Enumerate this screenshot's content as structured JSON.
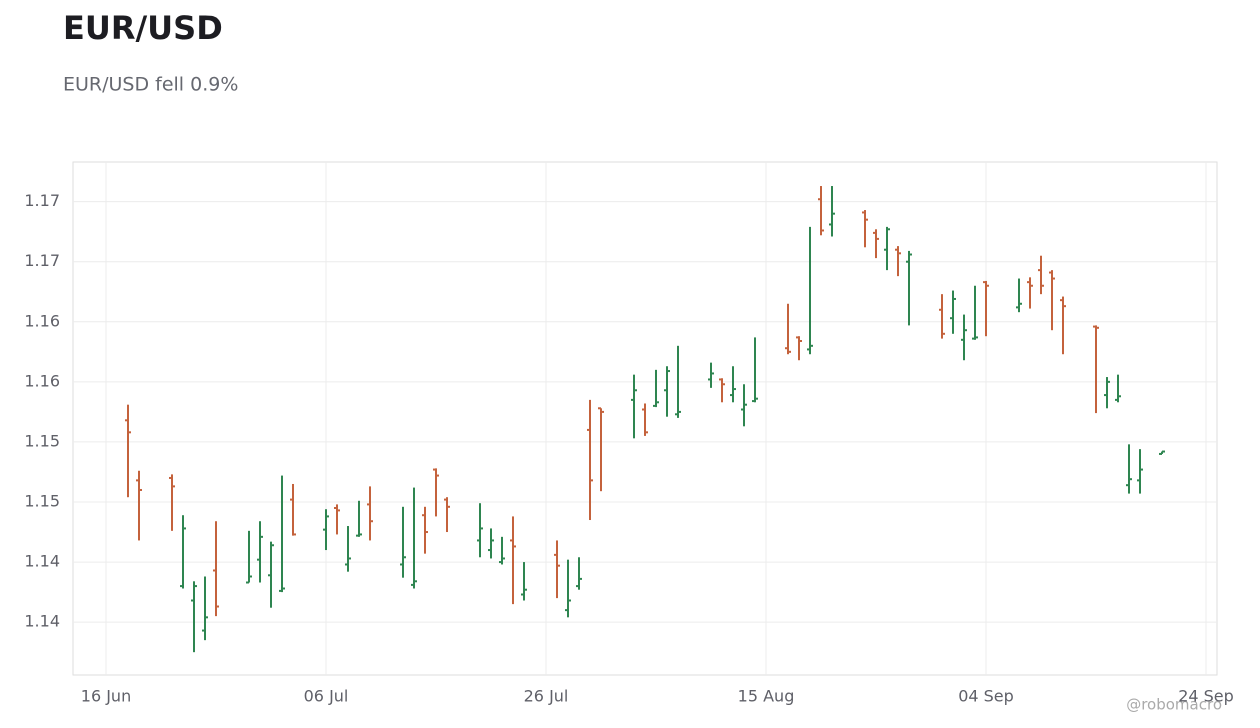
{
  "chart_data": {
    "type": "ohlc",
    "title": "EUR/USD",
    "subtitle": "EUR/USD fell 0.9%",
    "watermark": "@robomacro",
    "up_color": "#2e8550",
    "down_color": "#c4623c",
    "grid": true,
    "x": [
      "18 Jun",
      "19 Jun",
      "22 Jun",
      "23 Jun",
      "24 Jun",
      "25 Jun",
      "26 Jun",
      "29 Jun",
      "30 Jun",
      "01 Jul",
      "02 Jul",
      "03 Jul",
      "06 Jul",
      "07 Jul",
      "08 Jul",
      "09 Jul",
      "10 Jul",
      "13 Jul",
      "14 Jul",
      "15 Jul",
      "16 Jul",
      "17 Jul",
      "20 Jul",
      "21 Jul",
      "22 Jul",
      "23 Jul",
      "24 Jul",
      "27 Jul",
      "28 Jul",
      "29 Jul",
      "30 Jul",
      "31 Jul",
      "03 Aug",
      "04 Aug",
      "05 Aug",
      "06 Aug",
      "07 Aug",
      "10 Aug",
      "11 Aug",
      "12 Aug",
      "13 Aug",
      "14 Aug",
      "17 Aug",
      "18 Aug",
      "19 Aug",
      "20 Aug",
      "21 Aug",
      "24 Aug",
      "25 Aug",
      "26 Aug",
      "27 Aug",
      "28 Aug",
      "31 Aug",
      "01 Sep",
      "02 Sep",
      "03 Sep",
      "04 Sep",
      "07 Sep",
      "08 Sep",
      "09 Sep",
      "10 Sep",
      "11 Sep",
      "14 Sep",
      "15 Sep",
      "16 Sep",
      "17 Sep",
      "18 Sep",
      "20 Sep"
    ],
    "open": [
      1.1543,
      1.1493,
      1.1495,
      1.1405,
      1.1393,
      1.1368,
      1.1418,
      1.1408,
      1.1427,
      1.1414,
      1.1401,
      1.1477,
      1.1452,
      1.147,
      1.1423,
      1.1447,
      1.1473,
      1.1423,
      1.1406,
      1.1464,
      1.1502,
      1.1477,
      1.1443,
      1.1435,
      1.1425,
      1.1443,
      1.1398,
      1.1431,
      1.1385,
      1.1405,
      1.1535,
      1.1553,
      1.156,
      1.1552,
      1.1555,
      1.1568,
      1.1548,
      1.1577,
      1.1577,
      1.1564,
      1.1552,
      1.1559,
      1.1603,
      1.1612,
      1.1602,
      1.1727,
      1.1706,
      1.1716,
      1.1699,
      1.1685,
      1.1685,
      1.1675,
      1.1635,
      1.1628,
      1.161,
      1.1611,
      1.1658,
      1.1637,
      1.1658,
      1.1668,
      1.1666,
      1.1643,
      1.1621,
      1.1564,
      1.156,
      1.1489,
      1.1493,
      1.1515
    ],
    "high": [
      1.1556,
      1.1501,
      1.1498,
      1.1464,
      1.1409,
      1.1413,
      1.1459,
      1.1451,
      1.1459,
      1.1442,
      1.1497,
      1.149,
      1.1469,
      1.1473,
      1.1455,
      1.1476,
      1.1488,
      1.1471,
      1.1487,
      1.1471,
      1.1503,
      1.1479,
      1.1474,
      1.1453,
      1.1446,
      1.1463,
      1.1425,
      1.1443,
      1.1427,
      1.1429,
      1.156,
      1.1553,
      1.1581,
      1.1557,
      1.1585,
      1.1588,
      1.1605,
      1.1591,
      1.1578,
      1.1588,
      1.1573,
      1.1612,
      1.164,
      1.1613,
      1.1704,
      1.1738,
      1.1738,
      1.1718,
      1.1702,
      1.1704,
      1.1688,
      1.1684,
      1.1648,
      1.1651,
      1.1631,
      1.1655,
      1.1659,
      1.1661,
      1.1662,
      1.168,
      1.1668,
      1.1646,
      1.1622,
      1.1579,
      1.1581,
      1.1523,
      1.1519,
      1.1517
    ],
    "low": [
      1.1479,
      1.1443,
      1.1451,
      1.1403,
      1.135,
      1.136,
      1.138,
      1.1408,
      1.1408,
      1.1387,
      1.14,
      1.1447,
      1.1435,
      1.1448,
      1.1417,
      1.1446,
      1.1443,
      1.1412,
      1.1403,
      1.1432,
      1.1463,
      1.145,
      1.1429,
      1.1428,
      1.1423,
      1.139,
      1.1393,
      1.1395,
      1.1379,
      1.1402,
      1.146,
      1.1484,
      1.1528,
      1.153,
      1.1554,
      1.1546,
      1.1545,
      1.157,
      1.1558,
      1.1558,
      1.1538,
      1.1558,
      1.1598,
      1.1593,
      1.1598,
      1.1697,
      1.1696,
      1.1687,
      1.1678,
      1.1668,
      1.1663,
      1.1622,
      1.1611,
      1.1615,
      1.1593,
      1.161,
      1.1613,
      1.1633,
      1.1636,
      1.1648,
      1.1618,
      1.1598,
      1.1549,
      1.1553,
      1.1558,
      1.1482,
      1.1482,
      1.1515
    ],
    "close": [
      1.1533,
      1.1485,
      1.1488,
      1.1453,
      1.1405,
      1.1379,
      1.1388,
      1.1413,
      1.1446,
      1.1439,
      1.1403,
      1.1448,
      1.1463,
      1.1468,
      1.1428,
      1.1448,
      1.1459,
      1.1429,
      1.1409,
      1.145,
      1.1497,
      1.1471,
      1.1453,
      1.1443,
      1.1428,
      1.1438,
      1.1402,
      1.1422,
      1.1393,
      1.1411,
      1.1493,
      1.155,
      1.1568,
      1.1533,
      1.1558,
      1.1584,
      1.155,
      1.1582,
      1.1573,
      1.1569,
      1.1556,
      1.1561,
      1.16,
      1.1609,
      1.1605,
      1.1701,
      1.1715,
      1.171,
      1.1694,
      1.1702,
      1.1682,
      1.1681,
      1.1615,
      1.1644,
      1.1618,
      1.1612,
      1.1655,
      1.164,
      1.1655,
      1.1655,
      1.1661,
      1.1638,
      1.162,
      1.1575,
      1.1563,
      1.1494,
      1.1502,
      1.1517
    ],
    "xlim": [
      "13 Jun",
      "25 Sep"
    ],
    "xticks": [
      "16 Jun",
      "06 Jul",
      "26 Jul",
      "15 Aug",
      "04 Sep",
      "24 Sep"
    ],
    "ylim": [
      1.1331,
      1.1758
    ],
    "yticks": [
      {
        "value": 1.1375,
        "label": "1.14"
      },
      {
        "value": 1.1425,
        "label": "1.14"
      },
      {
        "value": 1.1475,
        "label": "1.15"
      },
      {
        "value": 1.1525,
        "label": "1.15"
      },
      {
        "value": 1.1575,
        "label": "1.16"
      },
      {
        "value": 1.1625,
        "label": "1.16"
      },
      {
        "value": 1.1675,
        "label": "1.17"
      },
      {
        "value": 1.1725,
        "label": "1.17"
      }
    ]
  }
}
